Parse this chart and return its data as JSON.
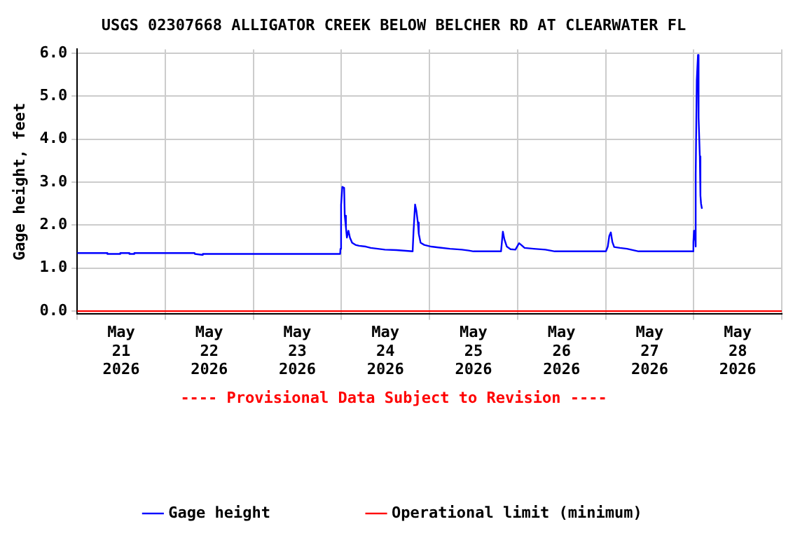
{
  "chart_data": {
    "type": "line",
    "title": "USGS 02307668 ALLIGATOR CREEK BELOW BELCHER RD AT CLEARWATER FL",
    "ylabel": "Gage height, feet",
    "annotations": [
      "---- Provisional Data Subject to Revision ----"
    ],
    "xlim": [
      "2026-05-21T00:00",
      "2026-05-29T00:00"
    ],
    "xticks": [
      {
        "value": "2026-05-21T00:00",
        "label": null
      },
      {
        "value": "2026-05-21T12:00",
        "label": "May 21 2026"
      },
      {
        "value": "2026-05-22T00:00",
        "label": null
      },
      {
        "value": "2026-05-22T12:00",
        "label": "May 22 2026"
      },
      {
        "value": "2026-05-23T00:00",
        "label": null
      },
      {
        "value": "2026-05-23T12:00",
        "label": "May 23 2026"
      },
      {
        "value": "2026-05-24T00:00",
        "label": null
      },
      {
        "value": "2026-05-24T12:00",
        "label": "May 24 2026"
      },
      {
        "value": "2026-05-25T00:00",
        "label": null
      },
      {
        "value": "2026-05-25T12:00",
        "label": "May 25 2026"
      },
      {
        "value": "2026-05-26T00:00",
        "label": null
      },
      {
        "value": "2026-05-26T12:00",
        "label": "May 26 2026"
      },
      {
        "value": "2026-05-27T00:00",
        "label": null
      },
      {
        "value": "2026-05-27T12:00",
        "label": "May 27 2026"
      },
      {
        "value": "2026-05-28T00:00",
        "label": null
      },
      {
        "value": "2026-05-28T12:00",
        "label": "May 28 2026"
      },
      {
        "value": "2026-05-29T00:00",
        "label": null
      }
    ],
    "ylim": [
      -0.07,
      6.09
    ],
    "yticks": [
      {
        "value": 0,
        "label": "0.0"
      },
      {
        "value": 1,
        "label": "1.0"
      },
      {
        "value": 2,
        "label": "2.0"
      },
      {
        "value": 3,
        "label": "3.0"
      },
      {
        "value": 4,
        "label": "4.0"
      },
      {
        "value": 5,
        "label": "5.0"
      },
      {
        "value": 6,
        "label": "6.0"
      }
    ],
    "grid": "x_and_y",
    "legend": "bottom",
    "marker": "none",
    "line_style": "solid",
    "series": [
      {
        "name": "Gage height",
        "color": "#0000ff",
        "x": [
          "2026-05-21T00:00",
          "2026-05-21T08:10",
          "2026-05-21T08:15",
          "2026-05-21T11:40",
          "2026-05-21T11:45",
          "2026-05-21T14:10",
          "2026-05-21T14:15",
          "2026-05-21T15:30",
          "2026-05-21T15:35",
          "2026-05-22T08:00",
          "2026-05-22T08:05",
          "2026-05-22T10:00",
          "2026-05-22T10:15",
          "2026-05-23T23:40",
          "2026-05-23T23:45",
          "2026-05-23T23:55",
          "2026-05-24T00:15",
          "2026-05-24T00:45",
          "2026-05-24T00:55",
          "2026-05-24T01:15",
          "2026-05-24T01:30",
          "2026-05-24T01:55",
          "2026-05-24T02:20",
          "2026-05-24T02:55",
          "2026-05-24T03:50",
          "2026-05-24T04:50",
          "2026-05-24T06:40",
          "2026-05-24T08:00",
          "2026-05-24T09:55",
          "2026-05-24T11:50",
          "2026-05-24T15:00",
          "2026-05-24T19:25",
          "2026-05-24T19:40",
          "2026-05-24T20:05",
          "2026-05-24T20:25",
          "2026-05-24T20:50",
          "2026-05-24T21:05",
          "2026-05-24T21:35",
          "2026-05-24T22:35",
          "2026-05-25T00:30",
          "2026-05-25T02:25",
          "2026-05-25T05:35",
          "2026-05-25T08:50",
          "2026-05-25T10:40",
          "2026-05-25T12:00",
          "2026-05-25T19:30",
          "2026-05-25T20:00",
          "2026-05-25T20:25",
          "2026-05-25T21:05",
          "2026-05-25T22:05",
          "2026-05-25T23:25",
          "2026-05-26T00:25",
          "2026-05-26T01:00",
          "2026-05-26T01:55",
          "2026-05-26T04:25",
          "2026-05-26T07:35",
          "2026-05-26T10:10",
          "2026-05-27T00:05",
          "2026-05-27T00:35",
          "2026-05-27T01:00",
          "2026-05-27T01:25",
          "2026-05-27T01:50",
          "2026-05-27T02:20",
          "2026-05-27T03:55",
          "2026-05-27T05:50",
          "2026-05-27T09:00",
          "2026-05-27T23:50",
          "2026-05-27T23:55",
          "2026-05-28T00:05",
          "2026-05-28T00:15",
          "2026-05-28T00:20",
          "2026-05-28T00:30",
          "2026-05-28T00:35",
          "2026-05-28T00:50",
          "2026-05-28T01:10",
          "2026-05-28T01:20",
          "2026-05-28T01:40",
          "2026-05-28T01:50",
          "2026-05-28T02:00",
          "2026-05-28T02:15"
        ],
        "values": [
          1.35,
          1.35,
          1.33,
          1.33,
          1.35,
          1.35,
          1.33,
          1.33,
          1.35,
          1.35,
          1.33,
          1.31,
          1.33,
          1.33,
          1.45,
          2.47,
          2.89,
          2.87,
          2.22,
          1.94,
          1.71,
          1.87,
          1.71,
          1.59,
          1.54,
          1.52,
          1.5,
          1.47,
          1.45,
          1.43,
          1.42,
          1.39,
          1.87,
          2.48,
          2.34,
          2.06,
          1.8,
          1.59,
          1.54,
          1.5,
          1.48,
          1.45,
          1.43,
          1.41,
          1.39,
          1.39,
          1.85,
          1.67,
          1.5,
          1.44,
          1.43,
          1.58,
          1.54,
          1.47,
          1.45,
          1.43,
          1.39,
          1.39,
          1.5,
          1.75,
          1.83,
          1.61,
          1.49,
          1.47,
          1.45,
          1.39,
          1.39,
          1.61,
          1.87,
          1.67,
          1.83,
          1.5,
          3.17,
          5.37,
          5.96,
          4.5,
          3.6,
          2.69,
          2.5,
          2.38
        ]
      },
      {
        "name": "Operational limit (minimum)",
        "color": "#ff0000",
        "x": [
          "2026-05-21T00:00",
          "2026-05-29T00:00"
        ],
        "values": [
          0,
          0
        ]
      }
    ]
  }
}
